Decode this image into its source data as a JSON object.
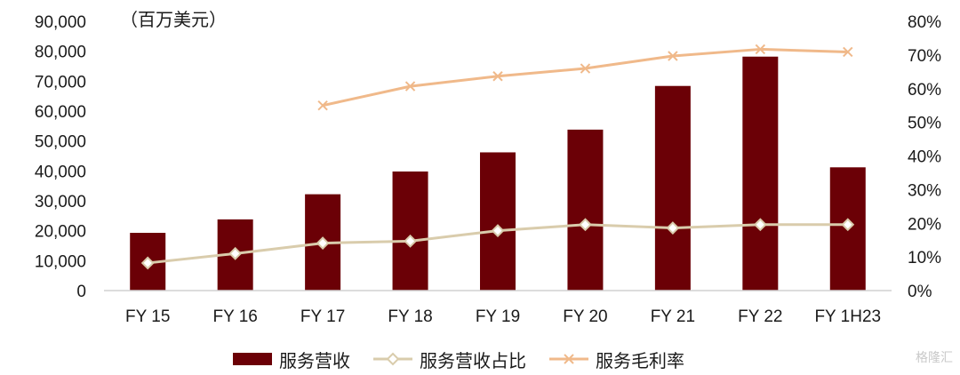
{
  "chart_data": {
    "type": "bar",
    "unit_label": "（百万美元）",
    "categories": [
      "FY 15",
      "FY 16",
      "FY 17",
      "FY 18",
      "FY 19",
      "FY 20",
      "FY 21",
      "FY 22",
      "FY 1H23"
    ],
    "y_left": {
      "ylim": [
        0,
        90000
      ],
      "ticks": [
        "0",
        "10,000",
        "20,000",
        "30,000",
        "40,000",
        "50,000",
        "60,000",
        "70,000",
        "80,000",
        "90,000"
      ]
    },
    "y_right": {
      "ylim": [
        0,
        80
      ],
      "ticks": [
        "0%",
        "10%",
        "20%",
        "30%",
        "40%",
        "50%",
        "60%",
        "70%",
        "80%"
      ]
    },
    "series": [
      {
        "name": "服务营收",
        "kind": "bar",
        "axis": "left",
        "color": "#6b0006",
        "values": [
          19300,
          23800,
          32200,
          39800,
          46200,
          53800,
          68400,
          78200,
          41200
        ]
      },
      {
        "name": "服务营收占比",
        "kind": "line",
        "marker": "diamond",
        "axis": "right",
        "color": "#d9ccac",
        "values": [
          8.2,
          11.0,
          14.1,
          14.7,
          17.8,
          19.6,
          18.6,
          19.6,
          19.6
        ]
      },
      {
        "name": "服务毛利率",
        "kind": "line",
        "marker": "x",
        "axis": "right",
        "color": "#f0b98a",
        "values": [
          null,
          null,
          55.0,
          60.7,
          63.7,
          66.0,
          69.7,
          71.7,
          70.9
        ]
      }
    ]
  },
  "watermark": "格隆汇"
}
